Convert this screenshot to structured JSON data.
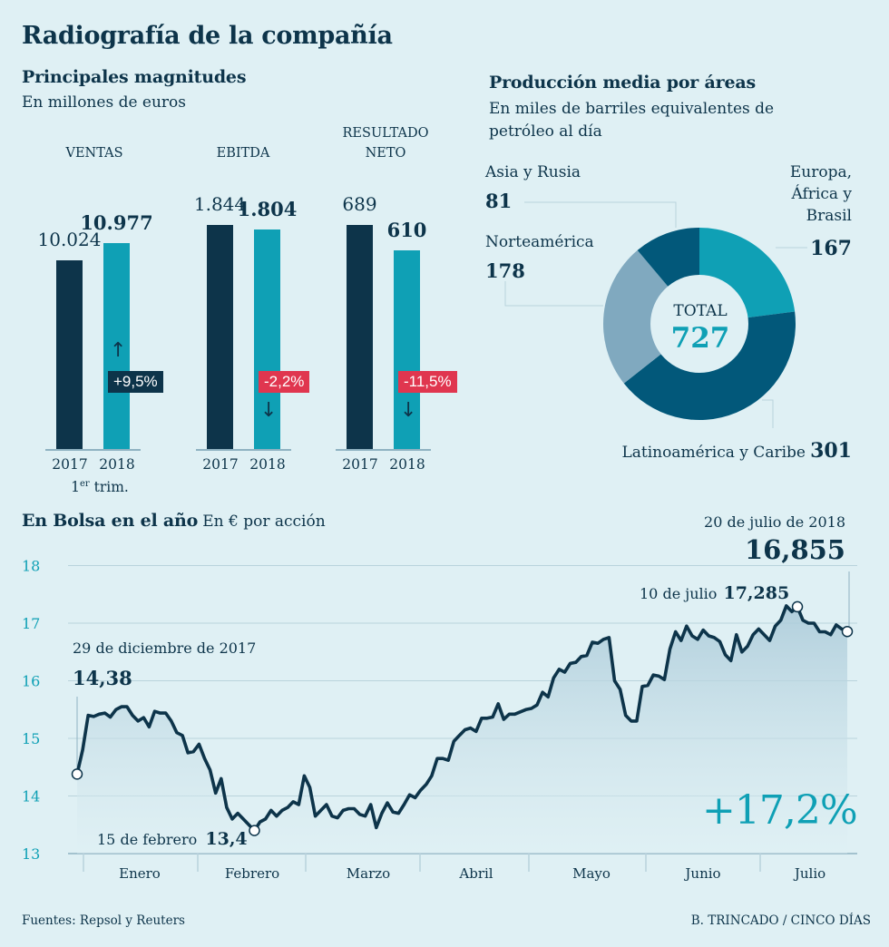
{
  "title": "Radiografía de la compañía",
  "colors": {
    "navy": "#0d344a",
    "teal": "#0fa0b5",
    "red": "#e0364f",
    "background": "#dff0f4",
    "grid": "#b9d3dc"
  },
  "magnitudes": {
    "heading": "Principales magnitudes",
    "unit": "En millones de euros",
    "period_note_sup": "er",
    "period_note_pre": "1",
    "period_note_post": " trim.",
    "groups": [
      {
        "label_line1": "",
        "label_line2": "VENTAS",
        "v2017_text": "10.024",
        "v2018_text": "10.977",
        "v2017": 10024,
        "v2018": 10977,
        "change": "+9,5%",
        "direction": "up"
      },
      {
        "label_line1": "",
        "label_line2": "EBITDA",
        "v2017_text": "1.844",
        "v2018_text": "1.804",
        "v2017": 1844,
        "v2018": 1804,
        "change": "-2,2%",
        "direction": "down"
      },
      {
        "label_line1": "RESULTADO",
        "label_line2": "NETO",
        "v2017_text": "689",
        "v2018_text": "610",
        "v2017": 689,
        "v2018": 610,
        "change": "-11,5%",
        "direction": "down"
      }
    ],
    "year_labels": [
      "2017",
      "2018"
    ],
    "arrow_up": "↑",
    "arrow_down": "↓"
  },
  "produccion": {
    "heading": "Producción media por áreas",
    "unit_line1": "En miles de barriles equivalentes de",
    "unit_line2": "petróleo al día",
    "total_label": "TOTAL",
    "total_value": "727",
    "labels": {
      "asia_l1": "Asia y Rusia",
      "asia_v": "81",
      "europa_l1": "Europa,",
      "europa_l2": "África y",
      "europa_l3": "Brasil",
      "europa_v": "167",
      "norte_l1": "Norteamérica",
      "norte_v": "178",
      "latam_l1": "Latinoamérica y Caribe",
      "latam_v": "301"
    }
  },
  "bolsa": {
    "heading": "En Bolsa en el año",
    "unit": "En € por acción",
    "start_date": "29 de diciembre de 2017",
    "start_value": "14,38",
    "min_date": "15 de febrero",
    "min_value": "13,4",
    "peak_date": "10 de julio",
    "peak_value": "17,285",
    "end_date": "20 de julio de 2018",
    "end_value": "16,855",
    "change": "+17,2%"
  },
  "footer": {
    "sources": "Fuentes: Repsol y Reuters",
    "credit": "B. TRINCADO / CINCO DÍAS"
  },
  "chart_data": [
    {
      "type": "bar",
      "title": "Principales magnitudes",
      "subtitle": "En millones de euros (1er trim.)",
      "categories": [
        "VENTAS",
        "EBITDA",
        "RESULTADO NETO"
      ],
      "series": [
        {
          "name": "2017",
          "values": [
            10024,
            1844,
            689
          ]
        },
        {
          "name": "2018",
          "values": [
            10977,
            1804,
            610
          ]
        }
      ],
      "annotations": [
        "+9,5%",
        "-2,2%",
        "-11,5%"
      ],
      "note": "each group scaled independently"
    },
    {
      "type": "pie",
      "title": "Producción media por áreas",
      "subtitle": "En miles de barriles equivalentes de petróleo al día",
      "labels": [
        "Europa, África y Brasil",
        "Latinoamérica y Caribe",
        "Norteamérica",
        "Asia y Rusia"
      ],
      "values": [
        167,
        301,
        178,
        81
      ],
      "slice_colors": [
        "#0fa0b5",
        "#02587a",
        "#80a9bf",
        "#02587a"
      ],
      "total": 727,
      "donut": true
    },
    {
      "type": "area",
      "title": "En Bolsa en el año",
      "ylabel": "En € por acción",
      "ylim": [
        13,
        18
      ],
      "yticks": [
        13,
        14,
        15,
        16,
        17,
        18
      ],
      "xticks": [
        "Enero",
        "Febrero",
        "Marzo",
        "Abril",
        "Mayo",
        "Junio",
        "Julio"
      ],
      "grid": true,
      "series": [
        {
          "name": "Repsol",
          "values": [
            14.38,
            14.8,
            15.4,
            15.38,
            15.42,
            15.44,
            15.37,
            15.5,
            15.55,
            15.55,
            15.4,
            15.3,
            15.36,
            15.2,
            15.47,
            15.44,
            15.44,
            15.3,
            15.1,
            15.05,
            14.75,
            14.77,
            14.9,
            14.65,
            14.45,
            14.05,
            14.3,
            13.8,
            13.6,
            13.7,
            13.6,
            13.5,
            13.4,
            13.55,
            13.6,
            13.75,
            13.65,
            13.75,
            13.8,
            13.9,
            13.85,
            14.35,
            14.15,
            13.65,
            13.75,
            13.85,
            13.65,
            13.62,
            13.75,
            13.78,
            13.78,
            13.68,
            13.65,
            13.85,
            13.45,
            13.7,
            13.88,
            13.72,
            13.7,
            13.85,
            14.02,
            13.97,
            14.1,
            14.2,
            14.35,
            14.65,
            14.65,
            14.62,
            14.95,
            15.05,
            15.15,
            15.18,
            15.12,
            15.35,
            15.35,
            15.37,
            15.6,
            15.33,
            15.42,
            15.42,
            15.46,
            15.5,
            15.52,
            15.58,
            15.8,
            15.72,
            16.05,
            16.2,
            16.15,
            16.3,
            16.32,
            16.42,
            16.44,
            16.67,
            16.65,
            16.72,
            16.75,
            16.0,
            15.85,
            15.4,
            15.3,
            15.3,
            15.9,
            15.92,
            16.1,
            16.08,
            16.02,
            16.55,
            16.85,
            16.7,
            16.95,
            16.78,
            16.72,
            16.88,
            16.78,
            16.75,
            16.68,
            16.45,
            16.35,
            16.8,
            16.5,
            16.6,
            16.8,
            16.9,
            16.8,
            16.7,
            16.95,
            17.05,
            17.3,
            17.2,
            17.285,
            17.05,
            17.0,
            17.0,
            16.85,
            16.85,
            16.8,
            16.97,
            16.9,
            16.855
          ]
        }
      ],
      "highlights": [
        {
          "label": "29 de diciembre de 2017",
          "value": 14.38,
          "index": 0
        },
        {
          "label": "15 de febrero",
          "value": 13.4,
          "index": 32
        },
        {
          "label": "10 de julio",
          "value": 17.285,
          "index": 130
        },
        {
          "label": "20 de julio de 2018",
          "value": 16.855,
          "index": 139
        }
      ],
      "change_label": "+17,2%"
    }
  ]
}
